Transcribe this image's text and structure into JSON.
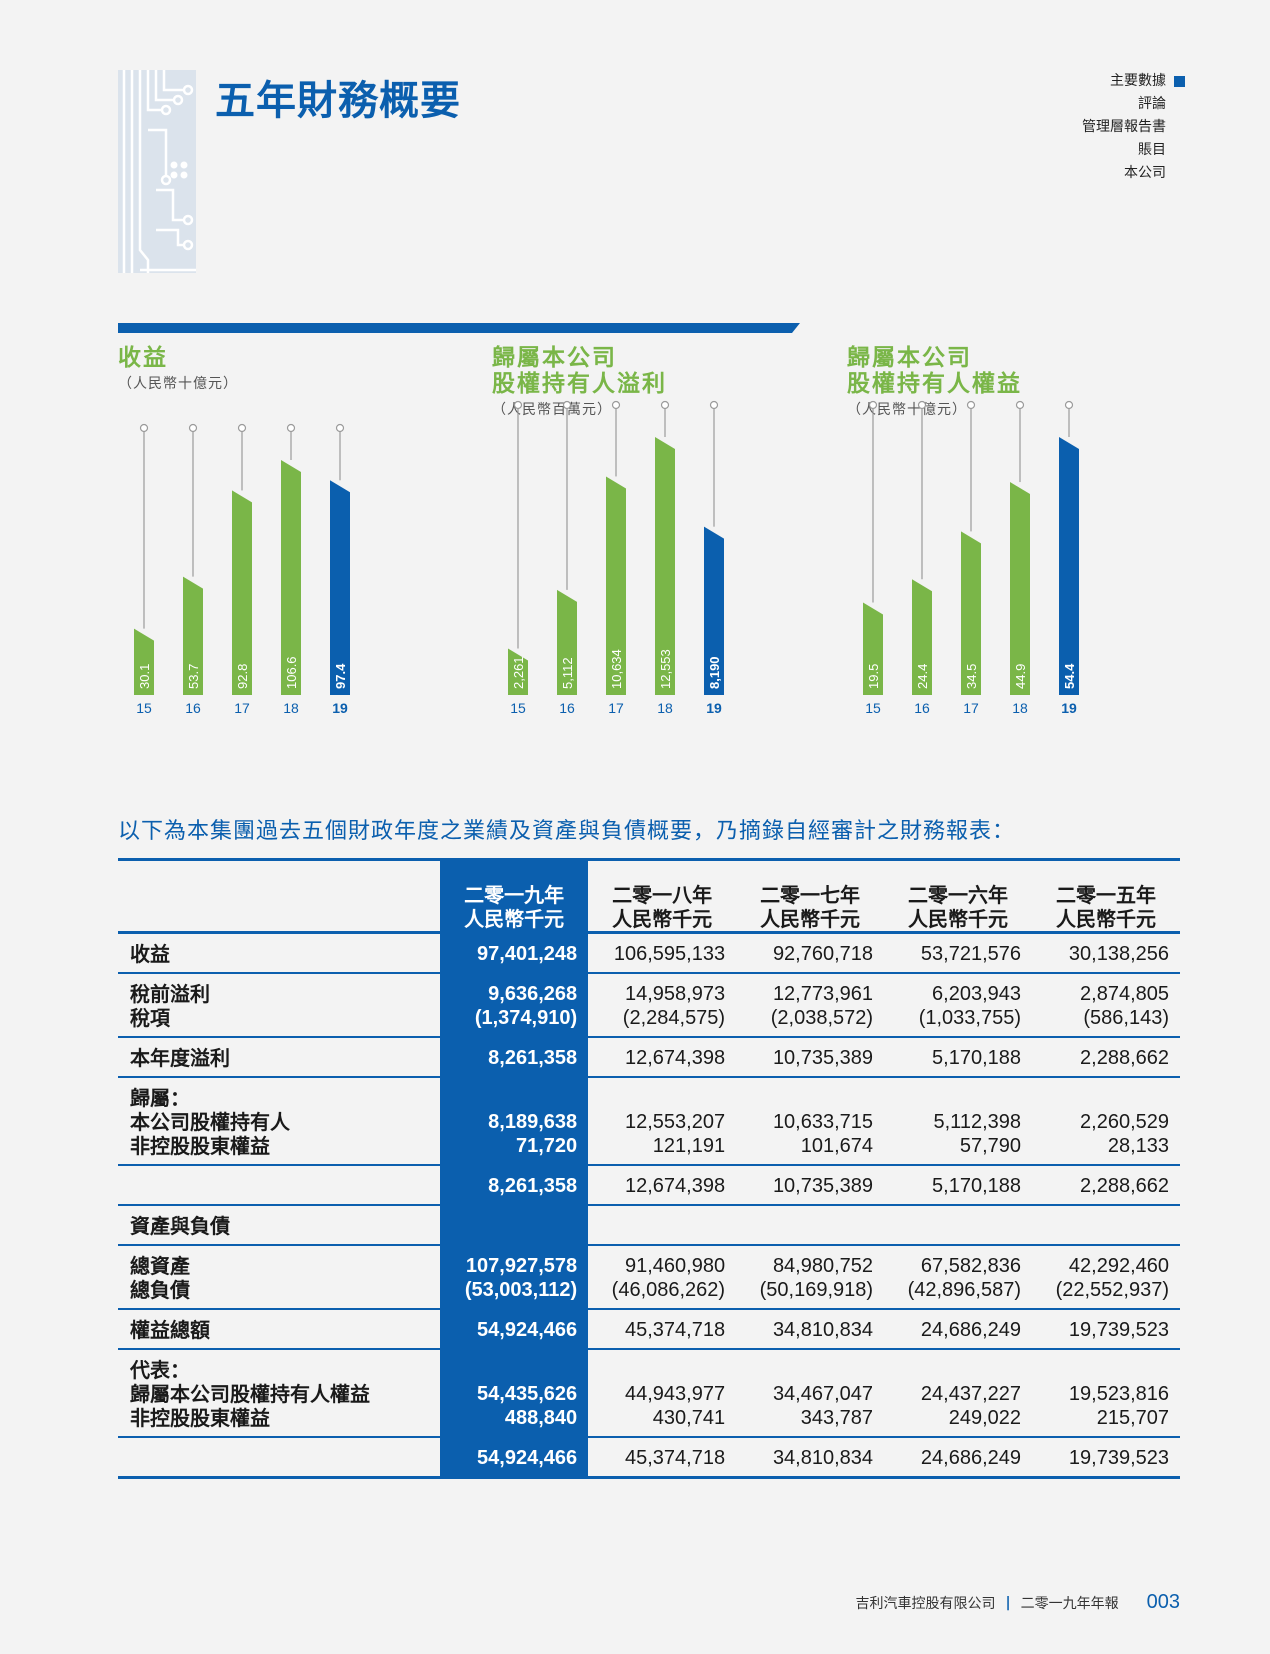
{
  "page": {
    "title": "五年財務概要",
    "nav": [
      "主要數據",
      "評論",
      "管理層報告書",
      "賬目",
      "本公司"
    ],
    "nav_active": 0
  },
  "colors": {
    "green": "#7ab648",
    "blue": "#0b5fae",
    "stem": "#9a9a9a"
  },
  "chart_data": [
    {
      "type": "bar",
      "title_lines": [
        "收益"
      ],
      "unit": "（人民幣十億元）",
      "categories": [
        "15",
        "16",
        "17",
        "18",
        "19"
      ],
      "values": [
        30.1,
        53.7,
        92.8,
        106.6,
        97.4
      ],
      "labels": [
        "30.1",
        "53.7",
        "92.8",
        "106.6",
        "97.4"
      ],
      "highlight_index": 4
    },
    {
      "type": "bar",
      "title_lines": [
        "歸屬本公司",
        "股權持有人溢利"
      ],
      "unit": "（人民幣百萬元）",
      "categories": [
        "15",
        "16",
        "17",
        "18",
        "19"
      ],
      "values": [
        2261,
        5112,
        10634,
        12553,
        8190
      ],
      "labels": [
        "2,261",
        "5,112",
        "10,634",
        "12,553",
        "8,190"
      ],
      "highlight_index": 4
    },
    {
      "type": "bar",
      "title_lines": [
        "歸屬本公司",
        "股權持有人權益"
      ],
      "unit": "（人民幣十億元）",
      "categories": [
        "15",
        "16",
        "17",
        "18",
        "19"
      ],
      "values": [
        19.5,
        24.4,
        34.5,
        44.9,
        54.4
      ],
      "labels": [
        "19.5",
        "24.4",
        "34.5",
        "44.9",
        "54.4"
      ],
      "highlight_index": 4
    }
  ],
  "intro": "以下為本集團過去五個財政年度之業績及資產與負債概要，乃摘錄自經審計之財務報表：",
  "table": {
    "headers": [
      [
        "二零一九年",
        "人民幣千元"
      ],
      [
        "二零一八年",
        "人民幣千元"
      ],
      [
        "二零一七年",
        "人民幣千元"
      ],
      [
        "二零一六年",
        "人民幣千元"
      ],
      [
        "二零一五年",
        "人民幣千元"
      ]
    ],
    "rows": [
      {
        "labels": [
          "收益"
        ],
        "values": [
          [
            "97,401,248"
          ],
          [
            "106,595,133"
          ],
          [
            "92,760,718"
          ],
          [
            "53,721,576"
          ],
          [
            "30,138,256"
          ]
        ]
      },
      {
        "labels": [
          "稅前溢利",
          "稅項"
        ],
        "values": [
          [
            "9,636,268",
            "(1,374,910)"
          ],
          [
            "14,958,973",
            "(2,284,575)"
          ],
          [
            "12,773,961",
            "(2,038,572)"
          ],
          [
            "6,203,943",
            "(1,033,755)"
          ],
          [
            "2,874,805",
            "(586,143)"
          ]
        ]
      },
      {
        "labels": [
          "本年度溢利"
        ],
        "values": [
          [
            "8,261,358"
          ],
          [
            "12,674,398"
          ],
          [
            "10,735,389"
          ],
          [
            "5,170,188"
          ],
          [
            "2,288,662"
          ]
        ]
      },
      {
        "labels": [
          "歸屬：",
          "本公司股權持有人",
          "非控股股東權益"
        ],
        "values": [
          [
            "",
            "8,189,638",
            "71,720"
          ],
          [
            "",
            "12,553,207",
            "121,191"
          ],
          [
            "",
            "10,633,715",
            "101,674"
          ],
          [
            "",
            "5,112,398",
            "57,790"
          ],
          [
            "",
            "2,260,529",
            "28,133"
          ]
        ]
      },
      {
        "labels": [
          ""
        ],
        "values": [
          [
            "8,261,358"
          ],
          [
            "12,674,398"
          ],
          [
            "10,735,389"
          ],
          [
            "5,170,188"
          ],
          [
            "2,288,662"
          ]
        ]
      },
      {
        "labels": [
          "資產與負債"
        ],
        "values": [
          [
            ""
          ],
          [
            ""
          ],
          [
            ""
          ],
          [
            ""
          ],
          [
            ""
          ]
        ]
      },
      {
        "labels": [
          "總資產",
          "總負債"
        ],
        "values": [
          [
            "107,927,578",
            "(53,003,112)"
          ],
          [
            "91,460,980",
            "(46,086,262)"
          ],
          [
            "84,980,752",
            "(50,169,918)"
          ],
          [
            "67,582,836",
            "(42,896,587)"
          ],
          [
            "42,292,460",
            "(22,552,937)"
          ]
        ]
      },
      {
        "labels": [
          "權益總額"
        ],
        "values": [
          [
            "54,924,466"
          ],
          [
            "45,374,718"
          ],
          [
            "34,810,834"
          ],
          [
            "24,686,249"
          ],
          [
            "19,739,523"
          ]
        ]
      },
      {
        "labels": [
          "代表：",
          "歸屬本公司股權持有人權益",
          "非控股股東權益"
        ],
        "values": [
          [
            "",
            "54,435,626",
            "488,840"
          ],
          [
            "",
            "44,943,977",
            "430,741"
          ],
          [
            "",
            "34,467,047",
            "343,787"
          ],
          [
            "",
            "24,437,227",
            "249,022"
          ],
          [
            "",
            "19,523,816",
            "215,707"
          ]
        ]
      },
      {
        "labels": [
          ""
        ],
        "values": [
          [
            "54,924,466"
          ],
          [
            "45,374,718"
          ],
          [
            "34,810,834"
          ],
          [
            "24,686,249"
          ],
          [
            "19,739,523"
          ]
        ]
      }
    ]
  },
  "footer": {
    "company": "吉利汽車控股有限公司",
    "report": "二零一九年年報",
    "page": "003"
  }
}
